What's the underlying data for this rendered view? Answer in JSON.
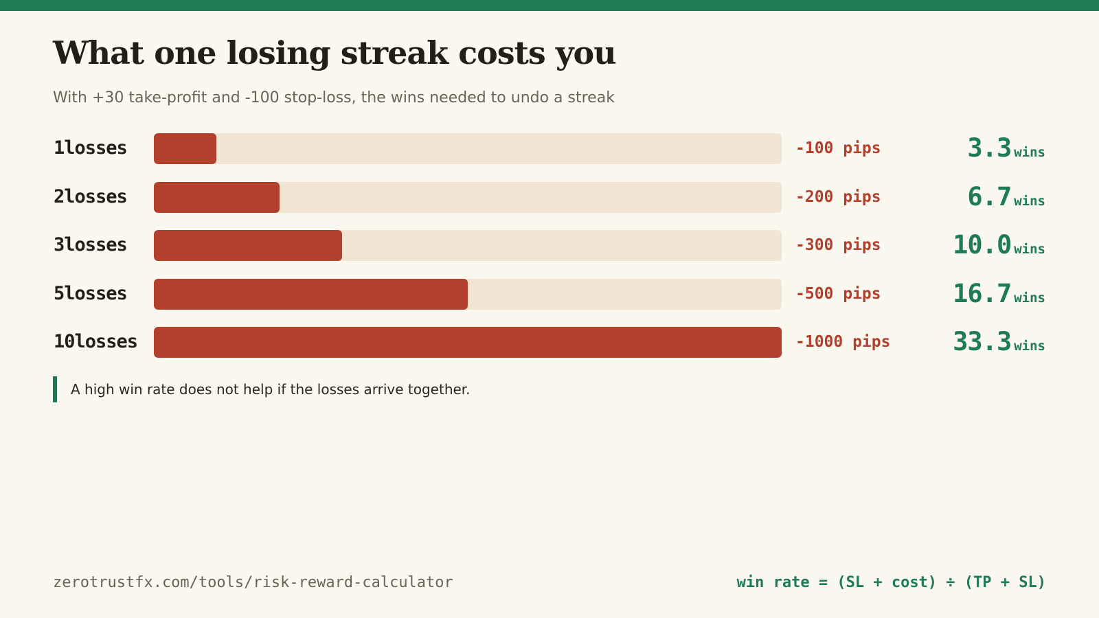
{
  "title": "What one losing streak costs you",
  "subtitle": "With +30 take-profit and -100 stop-loss, the wins needed to undo a streak",
  "note": "A high win rate does not help if the losses arrive together.",
  "footer": {
    "url": "zerotrustfx.com/tools/risk-reward-calculator",
    "formula": "win rate = (SL + cost) ÷ (TP + SL)"
  },
  "colors": {
    "accent_green": "#1e7b52",
    "loss_red": "#b33f2d",
    "track": "#f1e6d3",
    "background": "#fbf8ef"
  },
  "chart_data": {
    "type": "bar",
    "orientation": "horizontal",
    "max_pips": 1000,
    "categories": [
      "1losses",
      "2losses",
      "3losses",
      "5losses",
      "10losses"
    ],
    "series": [
      {
        "values": [
          -100,
          -200,
          -300,
          -500,
          -1000
        ]
      }
    ],
    "pips_labels": [
      "-100 pips",
      "-200 pips",
      "-300 pips",
      "-500 pips",
      "-1000 pips"
    ],
    "wins_needed": [
      "3.3",
      "6.7",
      "10.0",
      "16.7",
      "33.3"
    ],
    "wins_unit": "wins"
  }
}
